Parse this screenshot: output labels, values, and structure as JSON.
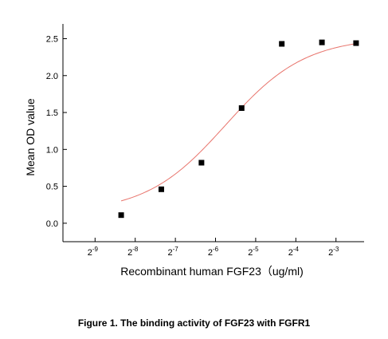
{
  "caption": "Figure 1. The binding activity of FGF23 with FGFR1",
  "chart_data": {
    "type": "scatter",
    "title": "",
    "xlabel": "Recombinant human  FGF23（ug/ml)",
    "ylabel": "Mean OD value",
    "x_scale": "log2",
    "xlim_exponent": [
      -9.8,
      -2.3
    ],
    "ylim": [
      -0.25,
      2.7
    ],
    "x_ticks": [
      {
        "exponent": -9,
        "base": "2",
        "sup": "-9"
      },
      {
        "exponent": -8,
        "base": "2",
        "sup": "-8"
      },
      {
        "exponent": -7,
        "base": "2",
        "sup": "-7"
      },
      {
        "exponent": -6,
        "base": "2",
        "sup": "-6"
      },
      {
        "exponent": -5,
        "base": "2",
        "sup": "-5"
      },
      {
        "exponent": -4,
        "base": "2",
        "sup": "-4"
      },
      {
        "exponent": -3,
        "base": "2",
        "sup": "-3"
      }
    ],
    "y_ticks": [
      {
        "value": 0.0,
        "label": "0.0"
      },
      {
        "value": 0.5,
        "label": "0.5"
      },
      {
        "value": 1.0,
        "label": "1.0"
      },
      {
        "value": 1.5,
        "label": "1.5"
      },
      {
        "value": 2.0,
        "label": "2.0"
      },
      {
        "value": 2.5,
        "label": "2.5"
      }
    ],
    "points": [
      {
        "x_exponent": -8.35,
        "y": 0.11
      },
      {
        "x_exponent": -7.35,
        "y": 0.46
      },
      {
        "x_exponent": -6.35,
        "y": 0.82
      },
      {
        "x_exponent": -5.35,
        "y": 1.56
      },
      {
        "x_exponent": -4.35,
        "y": 2.43
      },
      {
        "x_exponent": -3.35,
        "y": 2.45
      },
      {
        "x_exponent": -2.5,
        "y": 2.44
      }
    ],
    "fit_curve": {
      "model": "4PL",
      "bottom": 0.14,
      "top": 2.52,
      "ec50_exponent": -5.75,
      "slope": 1.45,
      "x_exponent_range": [
        -8.35,
        -2.5
      ],
      "color": "#e8746c"
    },
    "marker_color": "#000000",
    "grid": false,
    "legend": "none"
  }
}
